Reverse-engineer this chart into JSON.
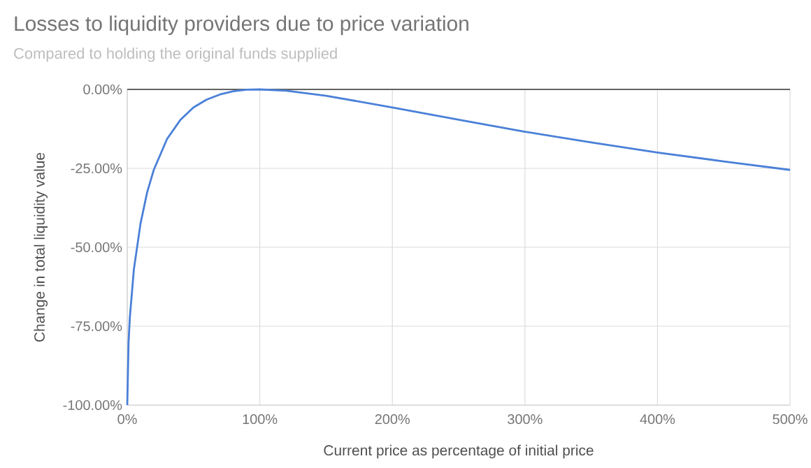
{
  "chart_data": {
    "type": "line",
    "title": "Losses to liquidity providers due to price variation",
    "subtitle": "Compared to holding the original funds supplied",
    "xlabel": "Current price as percentage of initial price",
    "ylabel": "Change in total liquidity value",
    "x": [
      0,
      1,
      2,
      5,
      10,
      15,
      20,
      30,
      40,
      50,
      60,
      70,
      80,
      90,
      100,
      120,
      150,
      200,
      250,
      300,
      350,
      400,
      450,
      500
    ],
    "series": [
      {
        "color": "#4a80d8",
        "values": [
          -100,
          -80,
          -72,
          -57,
          -42.5,
          -32.6,
          -25.5,
          -15.7,
          -9.7,
          -5.7,
          -3.2,
          -1.6,
          -0.6,
          -0.1,
          0,
          -0.4,
          -2.0,
          -5.7,
          -9.6,
          -13.4,
          -16.8,
          -20.0,
          -22.8,
          -25.5
        ]
      }
    ],
    "xlim": [
      0,
      500
    ],
    "ylim": [
      -100,
      0
    ],
    "xticks": [
      {
        "value": 0,
        "label": "0%"
      },
      {
        "value": 100,
        "label": "100%"
      },
      {
        "value": 200,
        "label": "200%"
      },
      {
        "value": 300,
        "label": "300%"
      },
      {
        "value": 400,
        "label": "400%"
      },
      {
        "value": 500,
        "label": "500%"
      }
    ],
    "yticks": [
      {
        "value": -100,
        "label": "-100.00%"
      },
      {
        "value": -75,
        "label": "-75.00%"
      },
      {
        "value": -50,
        "label": "-50.00%"
      },
      {
        "value": -25,
        "label": "-25.00%"
      },
      {
        "value": 0,
        "label": "0.00%"
      }
    ],
    "grid": true,
    "marker": "none",
    "line_style": "solid"
  }
}
